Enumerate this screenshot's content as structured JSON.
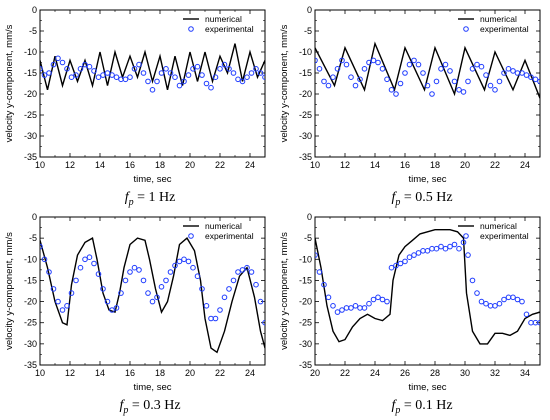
{
  "chart_data": [
    {
      "type": "line",
      "caption": {
        "sym": "f",
        "sub": "p",
        "rest": " = 1 Hz"
      },
      "xlabel": "time, sec",
      "ylabel": "velocity y-component, mm/s",
      "xlim": [
        10,
        25
      ],
      "ylim": [
        -35,
        0
      ],
      "xticks": [
        10,
        12,
        14,
        16,
        18,
        20,
        22,
        24
      ],
      "yticks": [
        0,
        -5,
        -10,
        -15,
        -20,
        -25,
        -30,
        -35
      ],
      "legend": {
        "position": "top-right"
      },
      "series": [
        {
          "name": "numerical",
          "style": "line",
          "color": "#000000",
          "x": [
            10,
            10.5,
            11,
            11.5,
            12,
            12.5,
            13,
            13.5,
            14,
            14.5,
            15,
            15.5,
            16,
            16.5,
            17,
            17.5,
            18,
            18.5,
            19,
            19.5,
            20,
            20.5,
            21,
            21.5,
            22,
            22.5,
            23,
            23.5,
            24,
            24.5,
            25
          ],
          "y": [
            -12,
            -19,
            -11,
            -18,
            -12,
            -17,
            -12,
            -18,
            -10,
            -18,
            -10,
            -16,
            -11,
            -16,
            -10,
            -17,
            -11,
            -19,
            -11,
            -18,
            -10,
            -17,
            -10,
            -17,
            -11,
            -15,
            -8,
            -17,
            -10,
            -16,
            -12
          ]
        },
        {
          "name": "experimental",
          "style": "marker",
          "color": "#1f3cff",
          "x": [
            10.0,
            10.3,
            10.6,
            10.9,
            11.2,
            11.5,
            11.8,
            12.1,
            12.4,
            12.7,
            13.0,
            13.3,
            13.6,
            13.9,
            14.2,
            14.5,
            14.8,
            15.1,
            15.4,
            15.7,
            16.0,
            16.3,
            16.6,
            16.9,
            17.2,
            17.5,
            17.8,
            18.1,
            18.4,
            18.7,
            19.0,
            19.3,
            19.6,
            19.9,
            20.2,
            20.5,
            20.8,
            21.1,
            21.4,
            21.7,
            22.0,
            22.3,
            22.6,
            22.9,
            23.2,
            23.5,
            23.8,
            24.1,
            24.4,
            24.7,
            25.0
          ],
          "y": [
            -14,
            -15.5,
            -15,
            -13,
            -11.5,
            -12.5,
            -14,
            -16,
            -15.5,
            -14,
            -13,
            -13.5,
            -14.5,
            -16,
            -15.5,
            -15,
            -15.5,
            -16,
            -16.5,
            -16.5,
            -16,
            -14,
            -13,
            -15,
            -17,
            -19,
            -17,
            -15,
            -14,
            -15,
            -16,
            -18,
            -17,
            -15.5,
            -14,
            -13.5,
            -15.5,
            -17.5,
            -18.5,
            -16,
            -14,
            -13,
            -14,
            -15,
            -16.5,
            -17,
            -16,
            -15,
            -14,
            -15,
            -16
          ]
        }
      ]
    },
    {
      "type": "line",
      "caption": {
        "sym": "f",
        "sub": "p",
        "rest": " = 0.5 Hz"
      },
      "xlabel": "time, sec",
      "ylabel": "velocity y-component, mm/s",
      "xlim": [
        10,
        25
      ],
      "ylim": [
        -35,
        0
      ],
      "xticks": [
        10,
        12,
        14,
        16,
        18,
        20,
        22,
        24
      ],
      "yticks": [
        0,
        -5,
        -10,
        -15,
        -20,
        -25,
        -30,
        -35
      ],
      "legend": {
        "position": "top-right"
      },
      "series": [
        {
          "name": "numerical",
          "style": "line",
          "color": "#000000",
          "x": [
            10,
            11.3,
            12,
            13.3,
            14,
            15.3,
            16,
            17.3,
            18,
            19.3,
            20,
            21.3,
            22,
            23.2,
            24,
            25
          ],
          "y": [
            -9,
            -18,
            -9,
            -19,
            -8,
            -19,
            -9,
            -19,
            -9,
            -20,
            -9,
            -19,
            -10,
            -19,
            -12,
            -21
          ]
        },
        {
          "name": "experimental",
          "style": "marker",
          "color": "#1f3cff",
          "x": [
            10.0,
            10.3,
            10.6,
            10.9,
            11.2,
            11.5,
            11.8,
            12.1,
            12.4,
            12.7,
            13.0,
            13.3,
            13.6,
            13.9,
            14.2,
            14.5,
            14.8,
            15.1,
            15.4,
            15.7,
            16.0,
            16.3,
            16.6,
            16.9,
            17.2,
            17.5,
            17.8,
            18.1,
            18.4,
            18.7,
            19.0,
            19.3,
            19.6,
            19.9,
            20.2,
            20.5,
            20.8,
            21.1,
            21.4,
            21.7,
            22.0,
            22.3,
            22.6,
            22.9,
            23.2,
            23.5,
            23.8,
            24.1,
            24.4,
            24.7,
            25.0
          ],
          "y": [
            -12,
            -14,
            -17,
            -18,
            -16,
            -14,
            -12,
            -13,
            -16,
            -18,
            -16.5,
            -14,
            -12.5,
            -12,
            -12.5,
            -14,
            -16.5,
            -19,
            -20,
            -17.5,
            -15,
            -13,
            -12,
            -13,
            -15,
            -18,
            -20,
            -17,
            -14,
            -13,
            -14.5,
            -17,
            -19,
            -19.5,
            -17,
            -14,
            -13,
            -13.5,
            -15.5,
            -18,
            -19,
            -17,
            -15,
            -14,
            -14.5,
            -15,
            -15,
            -15.5,
            -16,
            -16.5,
            -17
          ]
        }
      ]
    },
    {
      "type": "line",
      "caption": {
        "sym": "f",
        "sub": "p",
        "rest": " = 0.3 Hz"
      },
      "xlabel": "time, sec",
      "ylabel": "velocity y-component, mm/s",
      "xlim": [
        10,
        25
      ],
      "ylim": [
        -35,
        0
      ],
      "xticks": [
        10,
        12,
        14,
        16,
        18,
        20,
        22,
        24
      ],
      "yticks": [
        0,
        -5,
        -10,
        -15,
        -20,
        -25,
        -30,
        -35
      ],
      "legend": {
        "position": "top-right"
      },
      "series": [
        {
          "name": "numerical",
          "style": "line",
          "color": "#000000",
          "x": [
            10,
            10.5,
            11,
            11.5,
            11.8,
            12.1,
            12.5,
            13,
            13.5,
            13.8,
            14.2,
            14.6,
            15,
            15.3,
            15.6,
            16,
            16.5,
            17,
            17.3,
            17.7,
            18.1,
            18.5,
            18.9,
            19.3,
            19.8,
            20.3,
            20.7,
            21,
            21.4,
            21.8,
            22.3,
            22.8,
            23.3,
            23.8,
            24.3,
            24.7,
            25
          ],
          "y": [
            -5.5,
            -12,
            -20,
            -25,
            -25.5,
            -16,
            -9,
            -6,
            -5,
            -10,
            -18,
            -22,
            -22.5,
            -18,
            -12,
            -6.5,
            -5,
            -5.5,
            -10,
            -17,
            -22.5,
            -20,
            -14,
            -6.5,
            -5,
            -8,
            -15,
            -24,
            -31,
            -32,
            -27,
            -20,
            -14,
            -12,
            -19,
            -27,
            -31
          ]
        },
        {
          "name": "experimental",
          "style": "marker",
          "color": "#1f3cff",
          "x": [
            10.0,
            10.3,
            10.6,
            10.9,
            11.2,
            11.5,
            11.8,
            12.1,
            12.4,
            12.7,
            13.0,
            13.3,
            13.6,
            13.9,
            14.2,
            14.5,
            14.8,
            15.1,
            15.4,
            15.7,
            16.0,
            16.3,
            16.6,
            16.9,
            17.2,
            17.5,
            17.8,
            18.1,
            18.4,
            18.7,
            19.0,
            19.3,
            19.6,
            19.9,
            20.2,
            20.5,
            20.8,
            21.1,
            21.4,
            21.7,
            22.0,
            22.3,
            22.6,
            22.9,
            23.2,
            23.5,
            23.8,
            24.1,
            24.4,
            24.7,
            25.0
          ],
          "y": [
            -7,
            -10,
            -13,
            -17,
            -20,
            -22,
            -21,
            -18,
            -15,
            -12,
            -10,
            -9.5,
            -11,
            -13.5,
            -17,
            -20,
            -22,
            -21.5,
            -18,
            -15,
            -13,
            -12,
            -12.5,
            -15,
            -18,
            -20,
            -19,
            -16.5,
            -15,
            -13,
            -11.5,
            -10.5,
            -10,
            -10.5,
            -12,
            -14,
            -17,
            -21,
            -24,
            -24,
            -22,
            -19,
            -17,
            -15,
            -13,
            -12.5,
            -12,
            -13,
            -16,
            -20,
            -25
          ]
        }
      ]
    },
    {
      "type": "line",
      "caption": {
        "sym": "f",
        "sub": "p",
        "rest": " = 0.1 Hz"
      },
      "xlabel": "time, sec",
      "ylabel": "velocity y-component, mm/s",
      "xlim": [
        20,
        35
      ],
      "ylim": [
        -35,
        0
      ],
      "xticks": [
        20,
        22,
        24,
        26,
        28,
        30,
        32,
        34
      ],
      "yticks": [
        0,
        -5,
        -10,
        -15,
        -20,
        -25,
        -30,
        -35
      ],
      "legend": {
        "position": "top-right"
      },
      "series": [
        {
          "name": "numerical",
          "style": "line",
          "color": "#000000",
          "x": [
            20,
            20.4,
            20.8,
            21.2,
            21.6,
            22,
            22.5,
            23,
            23.5,
            24,
            24.5,
            25,
            25.2,
            25.6,
            26,
            26.5,
            27,
            27.5,
            28,
            28.5,
            29,
            29.5,
            29.9,
            30.1,
            30.5,
            31,
            31.5,
            32,
            32.5,
            33,
            33.5,
            34,
            34.5,
            35
          ],
          "y": [
            -5,
            -12,
            -21,
            -27,
            -29.5,
            -29,
            -26,
            -24,
            -23,
            -24,
            -24.5,
            -23,
            -15,
            -9,
            -7,
            -5.5,
            -4,
            -3.5,
            -3,
            -3,
            -3,
            -3.5,
            -5,
            -18,
            -27,
            -30,
            -30,
            -27.5,
            -27.5,
            -28,
            -27,
            -24,
            -23,
            -22.5
          ]
        },
        {
          "name": "experimental",
          "style": "marker",
          "color": "#1f3cff",
          "x": [
            20.0,
            20.3,
            20.6,
            20.9,
            21.2,
            21.5,
            21.8,
            22.1,
            22.4,
            22.7,
            23.0,
            23.3,
            23.6,
            23.9,
            24.2,
            24.5,
            24.8,
            25.1,
            25.4,
            25.7,
            26.0,
            26.3,
            26.6,
            26.9,
            27.2,
            27.5,
            27.8,
            28.1,
            28.4,
            28.7,
            29.0,
            29.3,
            29.6,
            29.9,
            30.2,
            30.5,
            30.8,
            31.1,
            31.4,
            31.7,
            32.0,
            32.3,
            32.6,
            32.9,
            33.2,
            33.5,
            33.8,
            34.1,
            34.4,
            34.7,
            35.0
          ],
          "y": [
            -9,
            -13,
            -16,
            -19,
            -21,
            -22.5,
            -22,
            -21.5,
            -21.5,
            -21,
            -21.5,
            -21.5,
            -20.5,
            -19.5,
            -19,
            -19.5,
            -20,
            -12,
            -11.5,
            -11,
            -10.5,
            -9.5,
            -9,
            -8.5,
            -8,
            -8,
            -7.5,
            -7.5,
            -7,
            -7.5,
            -7,
            -6.5,
            -7.5,
            -6,
            -9,
            -15,
            -18,
            -20,
            -20.5,
            -21,
            -21,
            -20.5,
            -19.5,
            -19,
            -19,
            -19.5,
            -20,
            -23,
            -25,
            -25,
            -25
          ]
        }
      ]
    }
  ]
}
